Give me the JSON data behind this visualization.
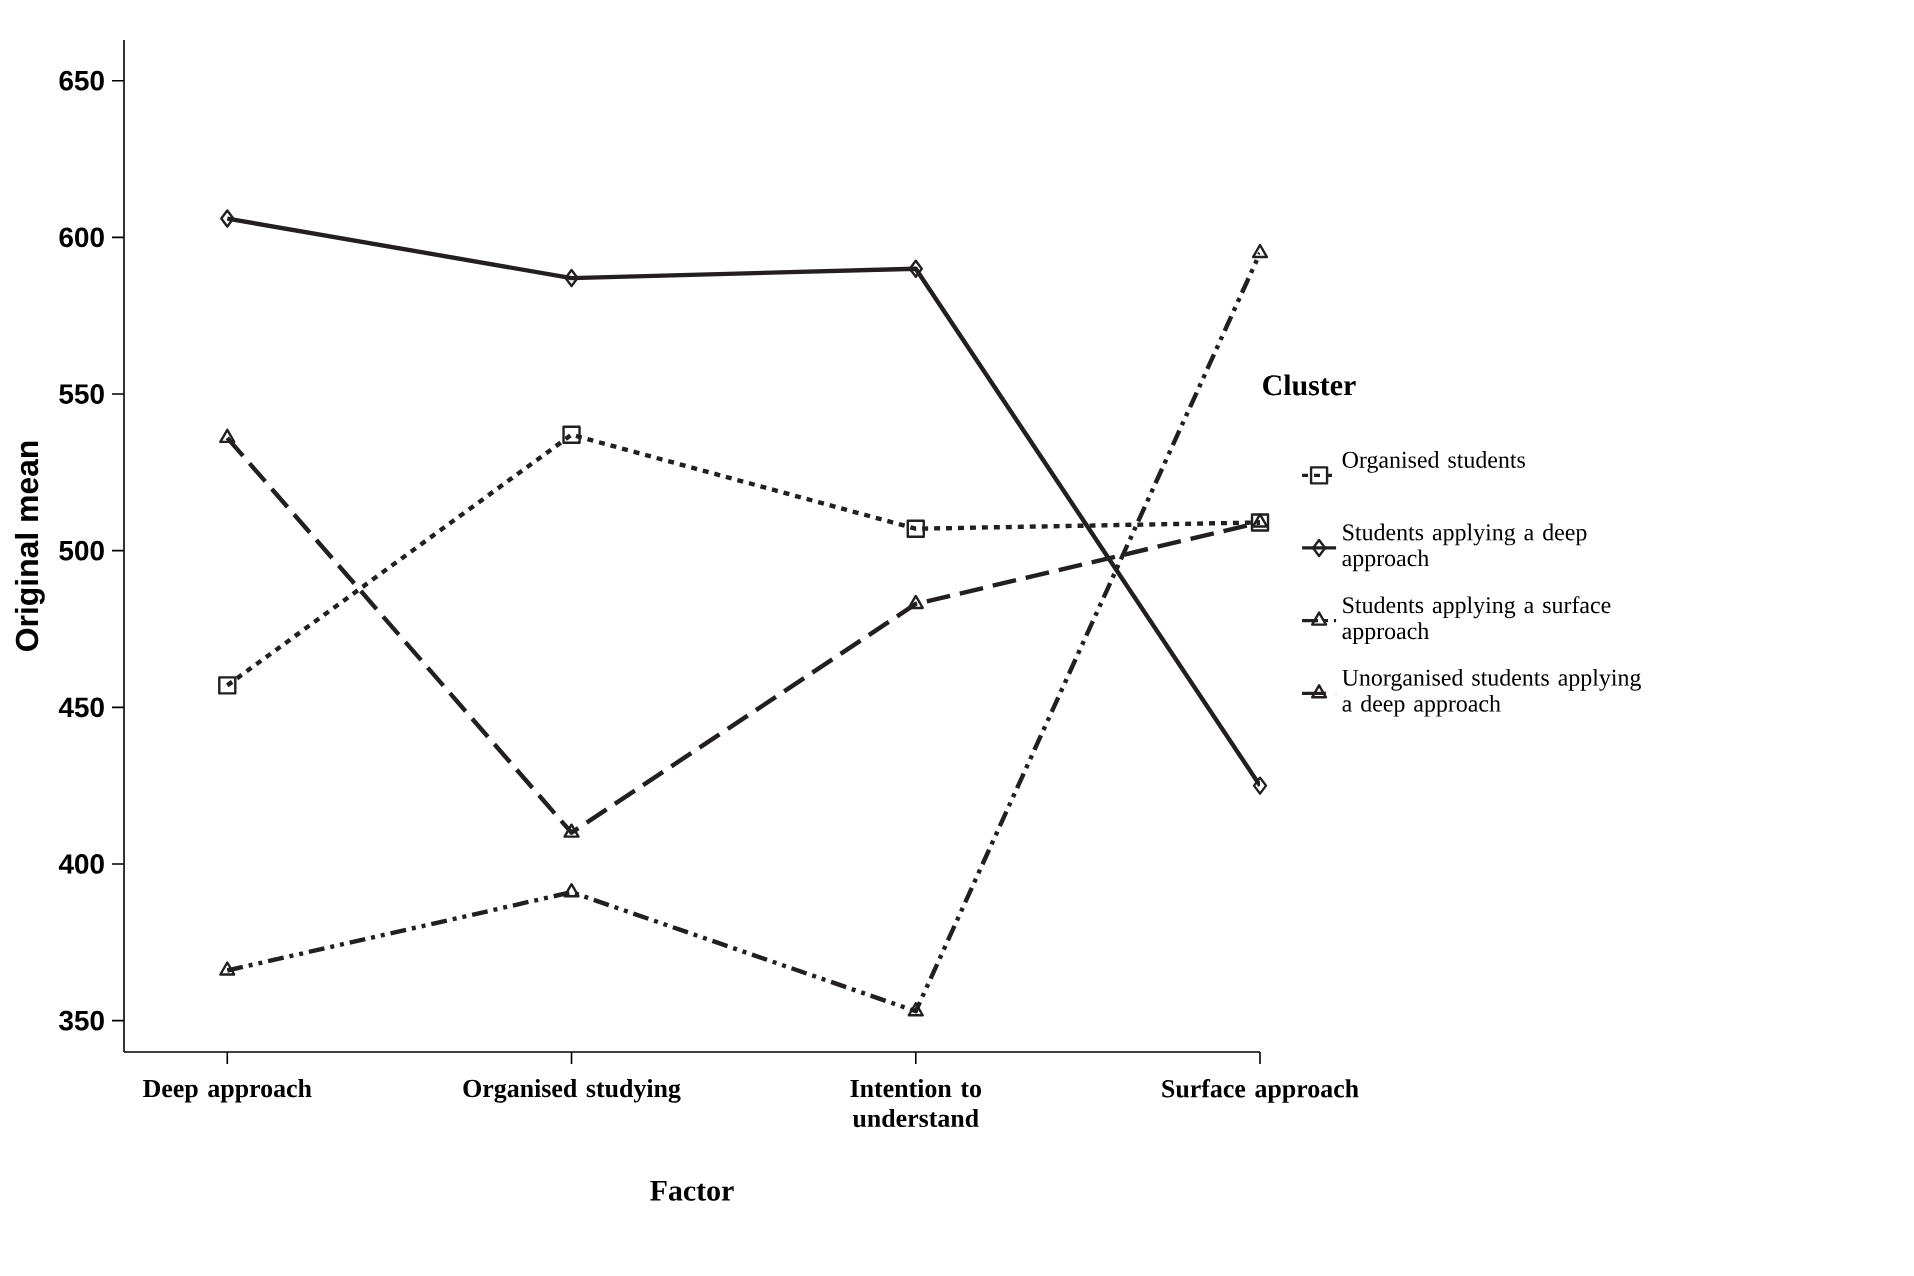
{
  "chart_data": {
    "type": "line",
    "xlabel": "Factor",
    "ylabel": "Original mean",
    "legend_title": "Cluster",
    "categories": [
      "Deep approach",
      "Organised studying",
      "Intention to understand",
      "Surface approach"
    ],
    "series": [
      {
        "name": "Organised students",
        "color": "#231f20",
        "values": [
          457,
          537,
          507,
          509
        ],
        "marker": "square",
        "line_style": "dotted"
      },
      {
        "name": "Students applying a deep approach",
        "color": "#231f20",
        "values": [
          606,
          587,
          590,
          425
        ],
        "marker": "diamond",
        "line_style": "solid"
      },
      {
        "name": "Students applying a surface approach",
        "color": "#231f20",
        "values": [
          366,
          391,
          353,
          595
        ],
        "marker": "triangle",
        "line_style": "dashdot"
      },
      {
        "name": "Unorganised students applying a deep approach",
        "color": "#231f20",
        "values": [
          536,
          410,
          483,
          509
        ],
        "marker": "triangle",
        "line_style": "dashed"
      }
    ],
    "ylim": [
      340,
      663
    ],
    "yticks": [
      350,
      400,
      450,
      500,
      550,
      600,
      650
    ],
    "grid": false,
    "legend": "right"
  }
}
